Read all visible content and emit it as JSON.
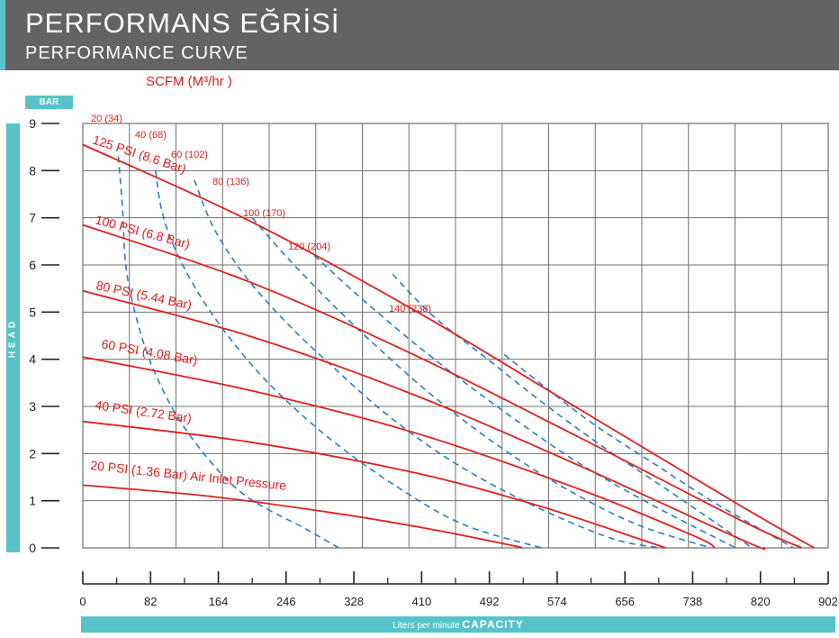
{
  "header": {
    "title_tr": "PERFORMANS EĞRİSİ",
    "title_en": "PERFORMANCE CURVE"
  },
  "colors": {
    "header_bg": "#636363",
    "accent": "#57c3c9",
    "pressure_curve": "#e0201e",
    "air_flow_curve": "#2a7fc4",
    "grid": "#6f6f6f"
  },
  "chart_data": {
    "type": "line",
    "title": "PERFORMANS EĞRİSİ",
    "subtitle": "PERFORMANCE CURVE",
    "xlabel_prefix": "Liters per minute",
    "xlabel": "CAPACITY",
    "ylabel": "HEAD",
    "yunit": "BAR",
    "top_axis_label": "SCFM (M³/hr )",
    "xlim": [
      0,
      902
    ],
    "ylim": [
      0,
      9
    ],
    "x_ticks": [
      "0",
      "82",
      "164",
      "246",
      "328",
      "410",
      "492",
      "574",
      "656",
      "738",
      "820",
      "902"
    ],
    "y_ticks": [
      "0",
      "1",
      "2",
      "3",
      "4",
      "5",
      "6",
      "7",
      "8",
      "9"
    ],
    "grid": true,
    "pressure_series": [
      {
        "name": "125 PSI (8.6 Bar)",
        "points": [
          [
            0,
            8.55
          ],
          [
            200,
            6.95
          ],
          [
            400,
            5.05
          ],
          [
            600,
            2.95
          ],
          [
            800,
            0.85
          ],
          [
            885,
            0
          ]
        ]
      },
      {
        "name": "100 PSI (6.8 Bar)",
        "points": [
          [
            0,
            6.85
          ],
          [
            200,
            5.65
          ],
          [
            400,
            4.1
          ],
          [
            600,
            2.35
          ],
          [
            800,
            0.55
          ],
          [
            870,
            0
          ]
        ]
      },
      {
        "name": "80 PSI (5.44 Bar)",
        "points": [
          [
            0,
            5.45
          ],
          [
            200,
            4.5
          ],
          [
            400,
            3.25
          ],
          [
            600,
            1.75
          ],
          [
            800,
            0.15
          ],
          [
            825,
            0
          ]
        ]
      },
      {
        "name": "60 PSI (4.08 Bar)",
        "points": [
          [
            0,
            4.05
          ],
          [
            200,
            3.35
          ],
          [
            400,
            2.45
          ],
          [
            600,
            1.25
          ],
          [
            740,
            0.25
          ],
          [
            765,
            0
          ]
        ]
      },
      {
        "name": "40 PSI (2.72 Bar)",
        "points": [
          [
            0,
            2.68
          ],
          [
            200,
            2.25
          ],
          [
            400,
            1.6
          ],
          [
            550,
            0.9
          ],
          [
            680,
            0.15
          ],
          [
            705,
            0
          ]
        ]
      },
      {
        "name": "20 PSI (1.36 Bar) Air Inlet Pressure",
        "points": [
          [
            0,
            1.33
          ],
          [
            150,
            1.1
          ],
          [
            300,
            0.75
          ],
          [
            420,
            0.4
          ],
          [
            520,
            0.05
          ],
          [
            530,
            0
          ]
        ]
      }
    ],
    "air_flow_series": [
      {
        "name": "20 (34)",
        "points": [
          [
            43,
            8.3
          ],
          [
            48,
            7.2
          ],
          [
            52,
            6.0
          ],
          [
            63,
            5.0
          ],
          [
            85,
            3.8
          ],
          [
            125,
            2.5
          ],
          [
            190,
            1.2
          ],
          [
            270,
            0.4
          ],
          [
            310,
            0
          ]
        ]
      },
      {
        "name": "40 (68)",
        "points": [
          [
            88,
            8.0
          ],
          [
            95,
            7.2
          ],
          [
            110,
            6.4
          ],
          [
            140,
            5.4
          ],
          [
            180,
            4.4
          ],
          [
            230,
            3.4
          ],
          [
            300,
            2.3
          ],
          [
            380,
            1.3
          ],
          [
            460,
            0.5
          ],
          [
            555,
            0
          ]
        ]
      },
      {
        "name": "60 (102)",
        "points": [
          [
            135,
            7.8
          ],
          [
            158,
            6.8
          ],
          [
            195,
            5.8
          ],
          [
            245,
            4.8
          ],
          [
            305,
            3.8
          ],
          [
            370,
            2.8
          ],
          [
            450,
            1.8
          ],
          [
            545,
            0.9
          ],
          [
            640,
            0.2
          ],
          [
            700,
            0
          ]
        ]
      },
      {
        "name": "80 (136)",
        "points": [
          [
            205,
            7.0
          ],
          [
            245,
            6.2
          ],
          [
            300,
            5.2
          ],
          [
            360,
            4.2
          ],
          [
            425,
            3.2
          ],
          [
            500,
            2.2
          ],
          [
            580,
            1.3
          ],
          [
            670,
            0.5
          ],
          [
            760,
            0
          ]
        ]
      },
      {
        "name": "100 (170)",
        "points": [
          [
            280,
            6.2
          ],
          [
            330,
            5.4
          ],
          [
            390,
            4.5
          ],
          [
            455,
            3.6
          ],
          [
            525,
            2.7
          ],
          [
            600,
            1.8
          ],
          [
            690,
            0.9
          ],
          [
            790,
            0
          ]
        ]
      },
      {
        "name": "120 (204)",
        "points": [
          [
            375,
            5.8
          ],
          [
            425,
            4.9
          ],
          [
            490,
            4.0
          ],
          [
            555,
            3.1
          ],
          [
            625,
            2.2
          ],
          [
            710,
            1.2
          ],
          [
            810,
            0
          ]
        ]
      },
      {
        "name": "140 (238)",
        "points": [
          [
            510,
            4.1
          ],
          [
            560,
            3.4
          ],
          [
            620,
            2.6
          ],
          [
            690,
            1.8
          ],
          [
            770,
            0.9
          ],
          [
            860,
            0
          ]
        ]
      }
    ]
  }
}
